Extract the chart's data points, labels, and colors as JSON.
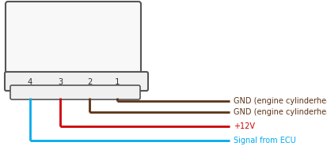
{
  "bg_color": "#ffffff",
  "pin_labels": [
    "4",
    "3",
    "2",
    "1"
  ],
  "wire_colors_left_to_right": [
    "#00aaee",
    "#cc0000",
    "#5c3317",
    "#5c3317"
  ],
  "wire_labels": [
    "GND (engine cylinderhead)",
    "GND (engine cylinderhead)",
    "+12V",
    "Signal from ECU"
  ],
  "label_text_color": "#333333",
  "label_fontsize": 7.0,
  "pin_fontsize": 7.5,
  "lw": 2.0
}
